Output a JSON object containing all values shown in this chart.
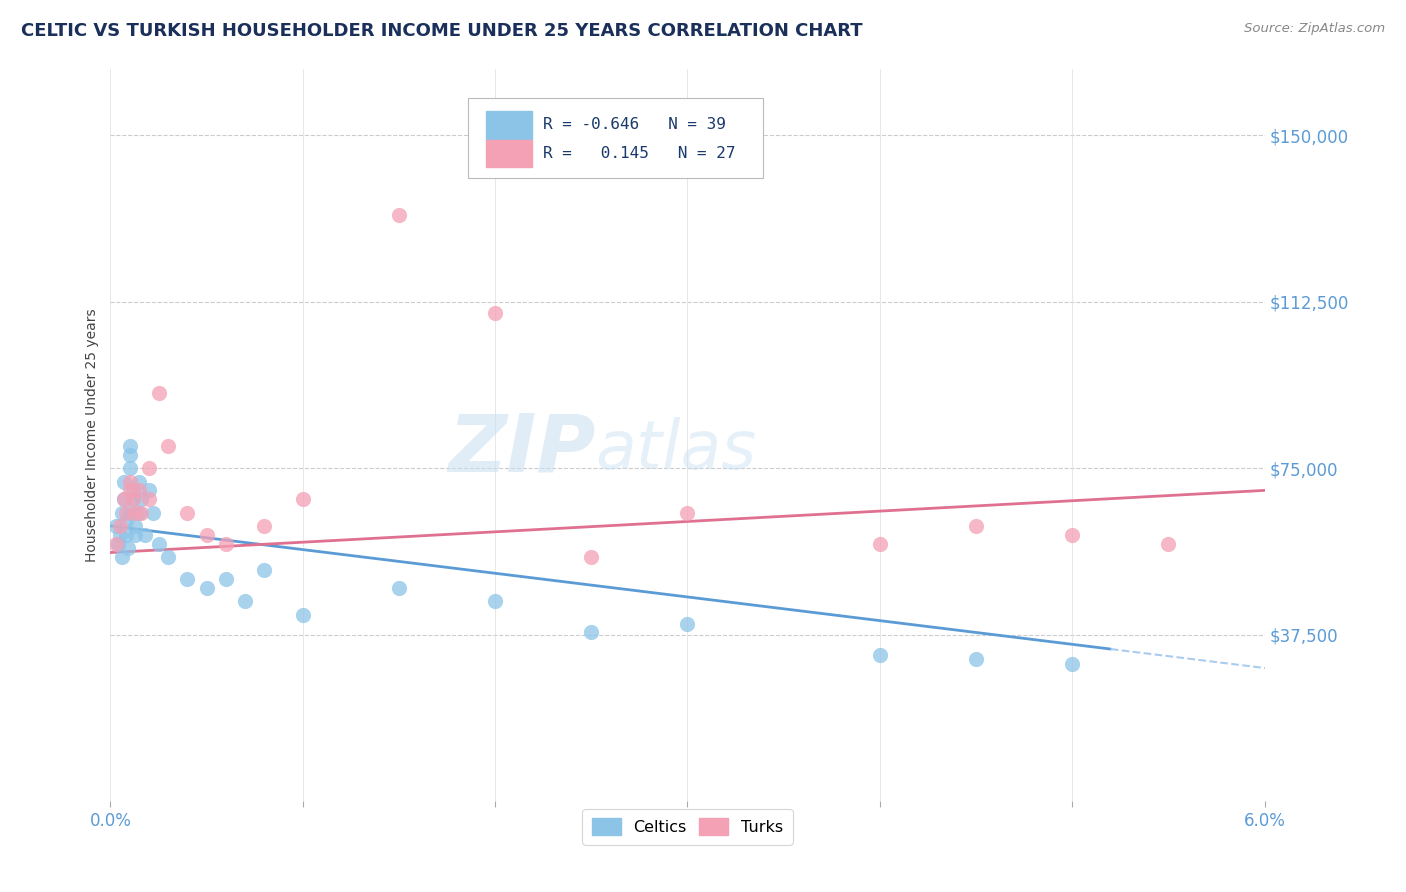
{
  "title": "CELTIC VS TURKISH HOUSEHOLDER INCOME UNDER 25 YEARS CORRELATION CHART",
  "source": "Source: ZipAtlas.com",
  "ylabel": "Householder Income Under 25 years",
  "xlim": [
    0.0,
    0.06
  ],
  "ylim": [
    0,
    165000
  ],
  "yticks": [
    37500,
    75000,
    112500,
    150000
  ],
  "ytick_labels": [
    "$37,500",
    "$75,000",
    "$112,500",
    "$150,000"
  ],
  "legend_R1": "R = -0.646",
  "legend_N1": "N = 39",
  "legend_R2": "R =   0.145",
  "legend_N2": "N = 27",
  "celtics_color": "#8cc4e8",
  "turks_color": "#f4a0b5",
  "celtics_line_color": "#5b9bd5",
  "turks_line_color": "#e07090",
  "background_color": "#ffffff",
  "celtics_x": [
    0.0003,
    0.0004,
    0.0005,
    0.0006,
    0.0006,
    0.0007,
    0.0007,
    0.0008,
    0.0008,
    0.0009,
    0.001,
    0.001,
    0.001,
    0.001,
    0.0012,
    0.0012,
    0.0013,
    0.0013,
    0.0015,
    0.0015,
    0.0016,
    0.0018,
    0.002,
    0.0022,
    0.0025,
    0.003,
    0.004,
    0.005,
    0.006,
    0.007,
    0.008,
    0.01,
    0.015,
    0.02,
    0.025,
    0.03,
    0.04,
    0.045,
    0.05
  ],
  "celtics_y": [
    62000,
    58000,
    60000,
    55000,
    65000,
    68000,
    72000,
    60000,
    63000,
    57000,
    65000,
    75000,
    80000,
    78000,
    68000,
    70000,
    62000,
    60000,
    72000,
    65000,
    68000,
    60000,
    70000,
    65000,
    58000,
    55000,
    50000,
    48000,
    50000,
    45000,
    52000,
    42000,
    48000,
    45000,
    38000,
    40000,
    33000,
    32000,
    31000
  ],
  "turks_x": [
    0.0003,
    0.0005,
    0.0007,
    0.0008,
    0.001,
    0.001,
    0.0012,
    0.0013,
    0.0015,
    0.0016,
    0.002,
    0.002,
    0.0025,
    0.003,
    0.004,
    0.005,
    0.006,
    0.008,
    0.01,
    0.015,
    0.02,
    0.025,
    0.03,
    0.04,
    0.045,
    0.05,
    0.055
  ],
  "turks_y": [
    58000,
    62000,
    68000,
    65000,
    72000,
    70000,
    68000,
    65000,
    70000,
    65000,
    75000,
    68000,
    92000,
    80000,
    65000,
    60000,
    58000,
    62000,
    68000,
    132000,
    110000,
    55000,
    65000,
    58000,
    62000,
    60000,
    58000
  ],
  "celtic_line_x0": 0.0,
  "celtic_line_y0": 62000,
  "celtic_line_x1": 0.06,
  "celtic_line_y1": 30000,
  "turk_line_x0": 0.0,
  "turk_line_y0": 56000,
  "turk_line_x1": 0.06,
  "turk_line_y1": 70000
}
